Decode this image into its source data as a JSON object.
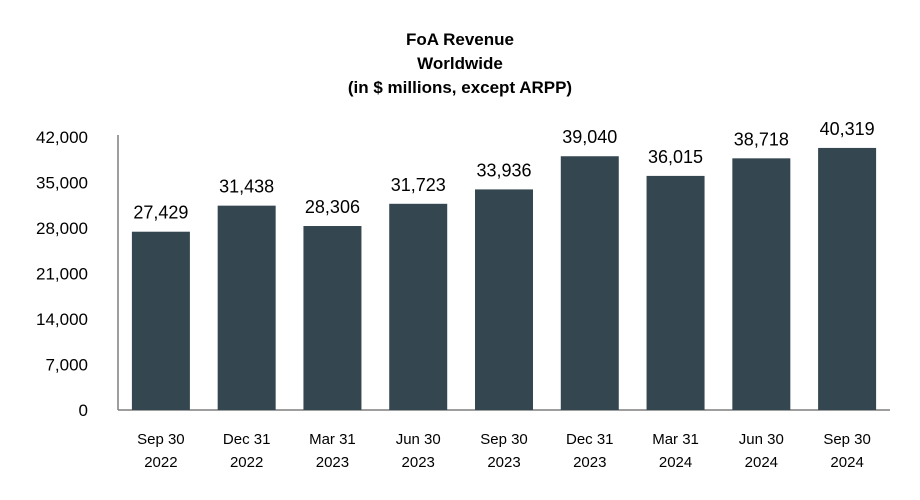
{
  "chart_data": {
    "type": "bar",
    "title": [
      "FoA Revenue",
      "Worldwide",
      "(in $ millions, except ARPP)"
    ],
    "categories": [
      [
        "Sep 30",
        "2022"
      ],
      [
        "Dec 31",
        "2022"
      ],
      [
        "Mar 31",
        "2023"
      ],
      [
        "Jun 30",
        "2023"
      ],
      [
        "Sep 30",
        "2023"
      ],
      [
        "Dec 31",
        "2023"
      ],
      [
        "Mar 31",
        "2024"
      ],
      [
        "Jun 30",
        "2024"
      ],
      [
        "Sep 30",
        "2024"
      ]
    ],
    "values": [
      27429,
      31438,
      28306,
      31723,
      33936,
      39040,
      36015,
      38718,
      40319
    ],
    "value_labels": [
      "27,429",
      "31,438",
      "28,306",
      "31,723",
      "33,936",
      "39,040",
      "36,015",
      "38,718",
      "40,319"
    ],
    "yticks": [
      0,
      7000,
      14000,
      21000,
      28000,
      35000,
      42000
    ],
    "ytick_labels": [
      "0",
      "7,000",
      "14,000",
      "21,000",
      "28,000",
      "35,000",
      "42,000"
    ],
    "ylim": [
      0,
      42000
    ],
    "xlabel": "",
    "ylabel": "",
    "grid": false,
    "legend": "none",
    "bar_color": "#344650"
  }
}
